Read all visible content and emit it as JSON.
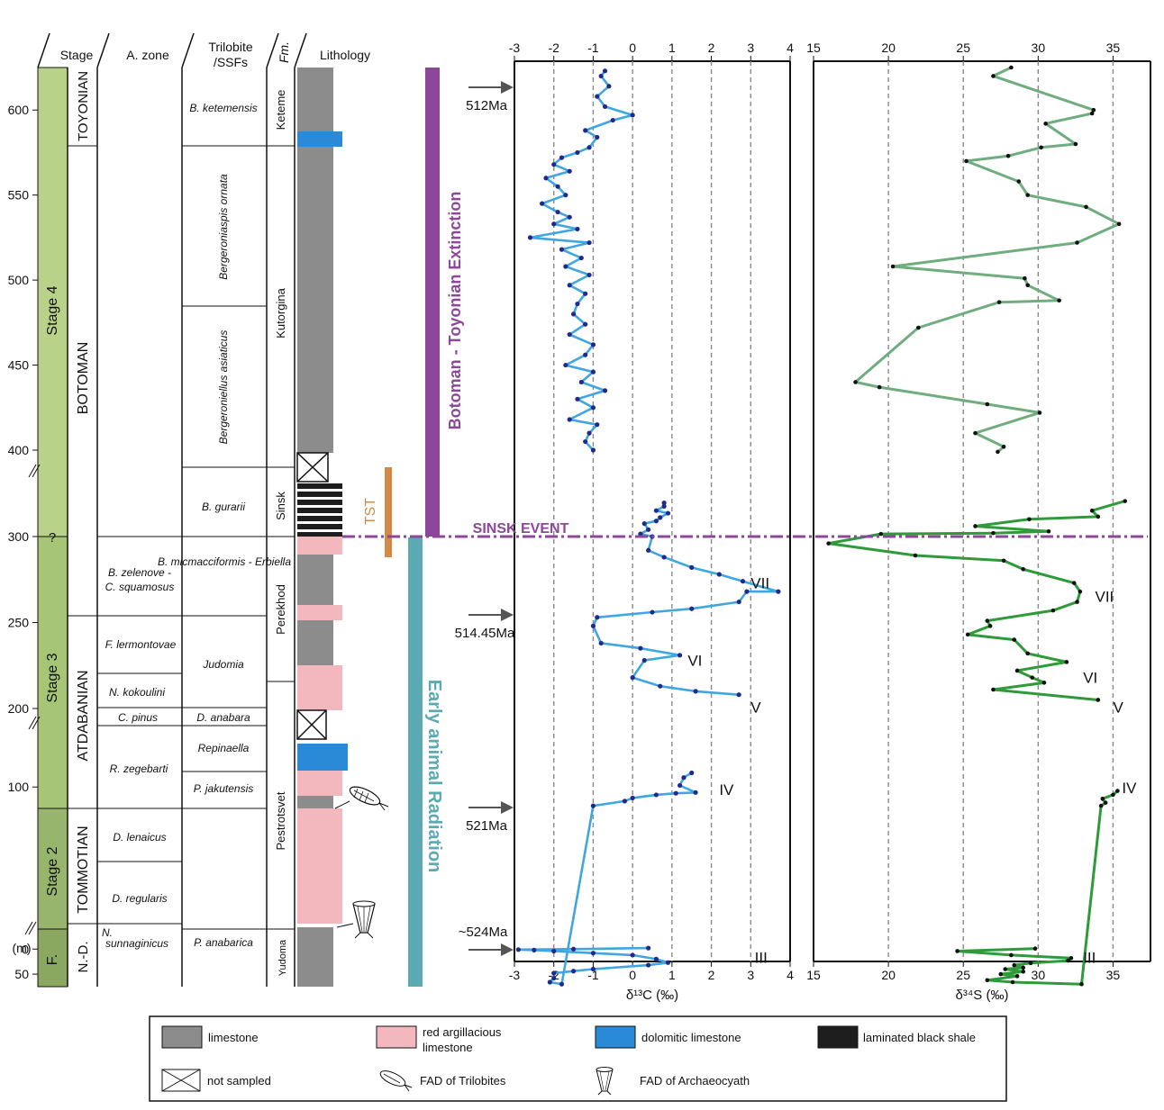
{
  "axis_unit": "(m)",
  "header": {
    "stage": "Stage",
    "azone": "A. zone",
    "trilobite_l1": "Trilobite",
    "trilobite_l2": "/SSFs",
    "fm": "Fm.",
    "lithology": "Lithology"
  },
  "stages": [
    {
      "label": "Stage 4"
    },
    {
      "label": "Stage 3"
    },
    {
      "label": "Stage 2"
    },
    {
      "label": "F."
    }
  ],
  "stage_boundary_query": "?",
  "regional_stages": [
    {
      "label": "TOYONIAN"
    },
    {
      "label": "BOTOMAN"
    },
    {
      "label": "ATDABANIAN"
    },
    {
      "label": "TOMMOTIAN"
    },
    {
      "label": "N.-D."
    }
  ],
  "azones": [
    {
      "l1": "B. zelenove -",
      "l2": "C. squamosus"
    },
    {
      "l1": "F. lermontovae",
      "l2": ""
    },
    {
      "l1": "N. kokoulini",
      "l2": ""
    },
    {
      "l1": "C. pinus",
      "l2": ""
    },
    {
      "l1": "R. zegebarti",
      "l2": ""
    },
    {
      "l1": "D. lenaicus",
      "l2": ""
    },
    {
      "l1": "D. regularis",
      "l2": ""
    },
    {
      "l1": "N.",
      "l2": "sunnaginicus"
    }
  ],
  "trilobite_zones": [
    {
      "label": "B. ketemensis"
    },
    {
      "label": "Bergeroniaspis ornata"
    },
    {
      "label": "Bergeroniellus asiaticus"
    },
    {
      "label": "B. gurarii"
    },
    {
      "label": "B. micmacciformis - Erbiella"
    },
    {
      "label": "Judomia"
    },
    {
      "label": "D. anabara"
    },
    {
      "label": "Repinaella"
    },
    {
      "label": "P. jakutensis"
    },
    {
      "label": "P. anabarica"
    }
  ],
  "formations": [
    {
      "label": "Keteme"
    },
    {
      "label": "Kutorgina"
    },
    {
      "label": "Sinsk"
    },
    {
      "label": "Perekhod"
    },
    {
      "label": "Pestrotsvet"
    },
    {
      "label": "Yudoma"
    }
  ],
  "events": {
    "botoman": "Botoman - Toyonian Extinction",
    "radiation": "Early animal Radiation",
    "tst": "TST",
    "sinsk": "SINSK EVENT"
  },
  "ages": [
    {
      "label": "512Ma"
    },
    {
      "label": "514.45Ma"
    },
    {
      "label": "521Ma"
    },
    {
      "label": "~524Ma"
    }
  ],
  "colors": {
    "limestone": "#8c8c8c",
    "red_argillaceous": "#f2b8bd",
    "dolomitic": "#2b8ad8",
    "black_shale": "#1e1e1e",
    "stage_green": "#b9d28a",
    "botoman_purple": "#8c4799",
    "radiation_teal": "#5ba9b2",
    "tst_orange": "#d28a44",
    "c_line": "#3fa6e0",
    "c_dot": "#1f2a8c",
    "s_line_upper": "#6fad7f",
    "s_line_lower": "#2e9a3a"
  },
  "legend": [
    {
      "label": "limestone",
      "label2": "",
      "icon": "gray-box"
    },
    {
      "label": "red argillacious",
      "label2": "limestone",
      "icon": "pink-box"
    },
    {
      "label": "dolomitic limestone",
      "label2": "",
      "icon": "blue-box"
    },
    {
      "label": "laminated black shale",
      "label2": "",
      "icon": "black-box"
    },
    {
      "label": "not sampled",
      "label2": "",
      "icon": "crossed-box"
    },
    {
      "label": "FAD of Trilobites",
      "label2": "",
      "icon": "trilobite-icon"
    },
    {
      "label": "FAD of Archaeocyath",
      "label2": "",
      "icon": "archaeocyath-icon"
    }
  ],
  "chart_data": [
    {
      "type": "line",
      "title": "",
      "xlabel": "δ¹³C (‰)",
      "ylabel": "(m)",
      "xlim": [
        -3,
        4
      ],
      "xticks": [
        -3,
        -2,
        -1,
        0,
        1,
        2,
        3,
        4
      ],
      "y_ticks": [
        {
          "label": "0",
          "value": 0
        },
        {
          "label": "50",
          "value": 50
        },
        {
          "label": "100",
          "value": 100
        },
        {
          "label": "200",
          "value": 200
        },
        {
          "label": "250",
          "value": 250
        },
        {
          "label": "300",
          "value": 300
        },
        {
          "label": "400",
          "value": 400
        },
        {
          "label": "450",
          "value": 450
        },
        {
          "label": "500",
          "value": 500
        },
        {
          "label": "550",
          "value": 550
        },
        {
          "label": "600",
          "value": 600
        }
      ],
      "grid": "vertical dashed",
      "peak_labels": [
        {
          "label": "III",
          "x": 3.1,
          "y": 27
        },
        {
          "label": "IV",
          "x": 2.2,
          "y": 90
        },
        {
          "label": "V",
          "x": 3.0,
          "y": 195
        },
        {
          "label": "VI",
          "x": 1.4,
          "y": 225
        },
        {
          "label": "VII",
          "x": 3.0,
          "y": 270
        }
      ],
      "series": [
        {
          "name": "",
          "segment": "lower",
          "points": [
            [
              0.4,
              -2
            ],
            [
              -1.5,
              0
            ],
            [
              -2.9,
              1
            ],
            [
              -2.5,
              2
            ],
            [
              -2,
              4
            ],
            [
              -1,
              8
            ],
            [
              0,
              12
            ],
            [
              0.6,
              20
            ],
            [
              0.9,
              27
            ],
            [
              0.4,
              32
            ],
            [
              -1,
              40
            ],
            [
              -1.5,
              44
            ],
            [
              -2,
              48
            ],
            [
              -2,
              58
            ],
            [
              -2.1,
              66
            ],
            [
              -1.8,
              70
            ],
            [
              -1,
              76
            ],
            [
              -0.2,
              82
            ],
            [
              0,
              86
            ],
            [
              0.6,
              90
            ],
            [
              1.1,
              92
            ],
            [
              1.6,
              93
            ],
            [
              1.2,
              102
            ],
            [
              1.3,
              112
            ],
            [
              1.5,
              118
            ]
          ]
        },
        {
          "name": "",
          "segment": "middle",
          "points": [
            [
              2.7,
              208
            ],
            [
              1.6,
              210
            ],
            [
              0.7,
              213
            ],
            [
              0,
              218
            ],
            [
              0.3,
              228
            ],
            [
              1.2,
              231
            ],
            [
              0.2,
              235
            ],
            [
              -0.8,
              238
            ],
            [
              -1,
              248
            ],
            [
              -0.9,
              253
            ],
            [
              0.5,
              256
            ],
            [
              1.5,
              258
            ],
            [
              2.7,
              262
            ],
            [
              2.9,
              268
            ],
            [
              3.7,
              268
            ],
            [
              2.8,
              274
            ],
            [
              2.2,
              278
            ],
            [
              1.5,
              282
            ],
            [
              0.8,
              288
            ],
            [
              0.4,
              292
            ],
            [
              0.5,
              300
            ],
            [
              0.2,
              303
            ],
            [
              0.4,
              308
            ],
            [
              0.3,
              315
            ],
            [
              0.6,
              318
            ],
            [
              0.7,
              322
            ],
            [
              0.9,
              327
            ],
            [
              0.6,
              330
            ],
            [
              0.8,
              335
            ],
            [
              0.8,
              339
            ]
          ]
        },
        {
          "name": "",
          "segment": "upper",
          "points": [
            [
              -1,
              400
            ],
            [
              -1.2,
              405
            ],
            [
              -1.1,
              410
            ],
            [
              -0.9,
              415
            ],
            [
              -1.6,
              418
            ],
            [
              -1,
              425
            ],
            [
              -1.4,
              430
            ],
            [
              -0.7,
              435
            ],
            [
              -1.3,
              440
            ],
            [
              -1,
              446
            ],
            [
              -1.7,
              450
            ],
            [
              -1.2,
              456
            ],
            [
              -1,
              462
            ],
            [
              -1.6,
              468
            ],
            [
              -1.2,
              474
            ],
            [
              -1.5,
              480
            ],
            [
              -1.4,
              486
            ],
            [
              -1.2,
              492
            ],
            [
              -1.6,
              497
            ],
            [
              -1.1,
              503
            ],
            [
              -1.7,
              508
            ],
            [
              -1.3,
              513
            ],
            [
              -1.8,
              518
            ],
            [
              -1.1,
              522
            ],
            [
              -2.6,
              525
            ],
            [
              -1.4,
              530
            ],
            [
              -2,
              533
            ],
            [
              -1.6,
              537
            ],
            [
              -1.9,
              540
            ],
            [
              -2.3,
              545
            ],
            [
              -1.7,
              550
            ],
            [
              -1.9,
              555
            ],
            [
              -2.2,
              560
            ],
            [
              -1.6,
              564
            ],
            [
              -2,
              568
            ],
            [
              -1.8,
              572
            ],
            [
              -1.4,
              575
            ],
            [
              -1.1,
              578
            ],
            [
              -0.9,
              584
            ],
            [
              -1.2,
              588
            ],
            [
              -0.5,
              594
            ],
            [
              0,
              597
            ],
            [
              -0.7,
              602
            ],
            [
              -0.9,
              608
            ],
            [
              -0.6,
              614
            ],
            [
              -0.8,
              620
            ],
            [
              -0.7,
              623
            ]
          ]
        }
      ]
    },
    {
      "type": "line",
      "title": "",
      "xlabel": "δ³⁴S (‰)",
      "ylabel": "(m)",
      "xlim": [
        15,
        37.5
      ],
      "xticks": [
        15,
        20,
        25,
        30,
        35
      ],
      "grid": "vertical dashed",
      "peak_labels": [
        {
          "label": "III",
          "x": 33,
          "y": 27
        },
        {
          "label": "IV",
          "x": 35.6,
          "y": 92
        },
        {
          "label": "V",
          "x": 35,
          "y": 195
        },
        {
          "label": "VI",
          "x": 33,
          "y": 215
        },
        {
          "label": "VII",
          "x": 33.8,
          "y": 262
        }
      ],
      "series": [
        {
          "name": "",
          "segment": "lower",
          "points": [
            [
              29.8,
              -1
            ],
            [
              24.6,
              4
            ],
            [
              28.2,
              12
            ],
            [
              32.2,
              18
            ],
            [
              32,
              23
            ],
            [
              29.5,
              28
            ],
            [
              28.4,
              32
            ],
            [
              29,
              37
            ],
            [
              27.8,
              40
            ],
            [
              29,
              45
            ],
            [
              27.5,
              50
            ],
            [
              28.6,
              54
            ],
            [
              26.6,
              62
            ],
            [
              28.3,
              66
            ],
            [
              32.9,
              70
            ],
            [
              34.2,
              76
            ],
            [
              34.5,
              80
            ],
            [
              34.3,
              85
            ],
            [
              35,
              90
            ],
            [
              35.3,
              95
            ]
          ]
        },
        {
          "name": "",
          "segment": "middle",
          "points": [
            [
              34,
              205
            ],
            [
              27,
              211
            ],
            [
              30.4,
              215
            ],
            [
              29.6,
              218
            ],
            [
              28.6,
              222
            ],
            [
              31.9,
              227
            ],
            [
              29.3,
              232
            ],
            [
              28.4,
              240
            ],
            [
              25.3,
              243
            ],
            [
              26.8,
              248
            ],
            [
              26.6,
              251
            ],
            [
              31,
              257
            ],
            [
              32.6,
              262
            ],
            [
              32.8,
              268
            ],
            [
              32.4,
              273
            ],
            [
              29,
              281
            ],
            [
              27.7,
              286
            ],
            [
              21.8,
              289
            ],
            [
              16,
              296
            ],
            [
              19.5,
              303
            ],
            [
              27,
              304
            ],
            [
              30.7,
              306
            ],
            [
              25.8,
              312
            ],
            [
              29.4,
              320
            ],
            [
              34,
              323
            ],
            [
              33.6,
              330
            ],
            [
              35.8,
              341
            ]
          ]
        },
        {
          "name": "",
          "segment": "upper",
          "points": [
            [
              27.3,
              398
            ],
            [
              27.7,
              402
            ],
            [
              25.8,
              410
            ],
            [
              30.1,
              422
            ],
            [
              26.6,
              427
            ],
            [
              19.4,
              437
            ],
            [
              17.8,
              440
            ],
            [
              22,
              472
            ],
            [
              27.4,
              487
            ],
            [
              31.4,
              488
            ],
            [
              29.3,
              497
            ],
            [
              29.1,
              501
            ],
            [
              20.3,
              508
            ],
            [
              32.6,
              522
            ],
            [
              35.4,
              533
            ],
            [
              33.2,
              543
            ],
            [
              29.3,
              550
            ],
            [
              28.7,
              558
            ],
            [
              25.2,
              570
            ],
            [
              28,
              573
            ],
            [
              30.2,
              578
            ],
            [
              32.5,
              580
            ],
            [
              30.5,
              592
            ],
            [
              33.6,
              598
            ],
            [
              33.7,
              600
            ],
            [
              27,
              620
            ],
            [
              28.2,
              625
            ]
          ]
        }
      ]
    }
  ]
}
